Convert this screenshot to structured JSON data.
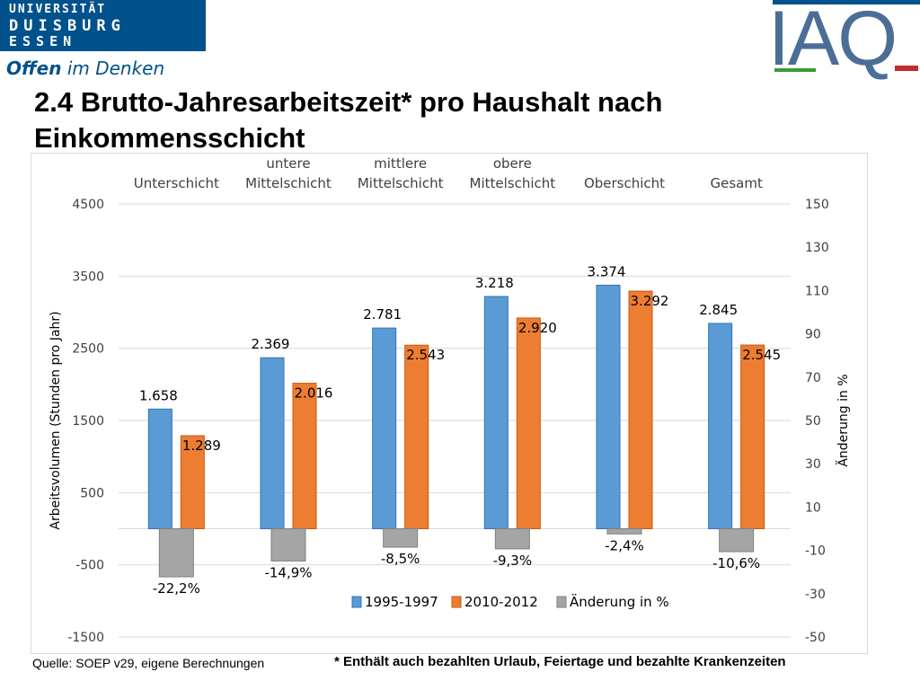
{
  "header": {
    "uni_line1": "UNIVERSITÄT",
    "uni_line2": "DUISBURG",
    "uni_line3": "ESSEN",
    "slogan_bold": "Offen",
    "slogan_rest": " im Denken",
    "iaq_logo": "IAQ"
  },
  "title": "2.4 Brutto-Jahresarbeitszeit* pro Haushalt  nach Einkommensschicht",
  "footer": {
    "source": "Quelle: SOEP v29, eigene Berechnungen",
    "note": "* Enthält auch bezahlten Urlaub, Feiertage und bezahlte Krankenzeiten"
  },
  "colors": {
    "series1": "#5b9bd5",
    "series2": "#ed7d31",
    "change": "#a5a5a5",
    "brand_blue": "#00518c"
  },
  "chart_data": {
    "type": "bar",
    "categories": [
      [
        "Unterschicht"
      ],
      [
        "untere",
        "Mittelschicht"
      ],
      [
        "mittlere",
        "Mittelschicht"
      ],
      [
        "obere",
        "Mittelschicht"
      ],
      [
        "Oberschicht"
      ],
      [
        "Gesamt"
      ]
    ],
    "series": [
      {
        "name": "1995-1997",
        "axis": "left",
        "values": [
          1658,
          2369,
          2781,
          3218,
          3374,
          2845
        ],
        "labels": [
          "1.658",
          "2.369",
          "2.781",
          "3.218",
          "3.374",
          "2.845"
        ]
      },
      {
        "name": "2010-2012",
        "axis": "left",
        "values": [
          1289,
          2016,
          2543,
          2920,
          3292,
          2545
        ],
        "labels": [
          "1.289",
          "2.016",
          "2.543",
          "2.920",
          "3.292",
          "2.545"
        ]
      },
      {
        "name": "Änderung in %",
        "axis": "right",
        "values": [
          -22.2,
          -14.9,
          -8.5,
          -9.3,
          -2.4,
          -10.6
        ],
        "labels": [
          "-22,2%",
          "-14,9%",
          "-8,5%",
          "-9,3%",
          "-2,4%",
          "-10,6%"
        ]
      }
    ],
    "ylabel": "Arbeitsvolumen (Stunden pro Jahr)",
    "y2label": "Änderung in %",
    "ylim": [
      -1500,
      4500
    ],
    "y2lim": [
      -50,
      150
    ],
    "yticks": [
      "4500",
      "3500",
      "2500",
      "1500",
      "500",
      "-500",
      "-1500"
    ],
    "y2ticks": [
      "150",
      "130",
      "110",
      "90",
      "70",
      "50",
      "30",
      "10",
      "-10",
      "-30",
      "-50"
    ],
    "grid": true,
    "legend": "bottom"
  }
}
